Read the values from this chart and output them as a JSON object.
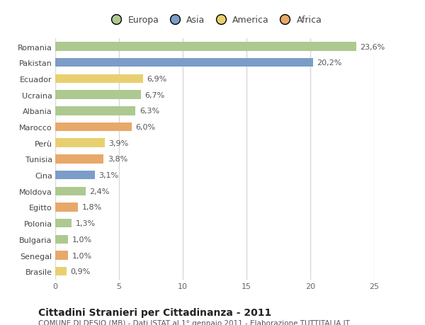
{
  "countries": [
    "Romania",
    "Pakistan",
    "Ecuador",
    "Ucraina",
    "Albania",
    "Marocco",
    "Perù",
    "Tunisia",
    "Cina",
    "Moldova",
    "Egitto",
    "Polonia",
    "Bulgaria",
    "Senegal",
    "Brasile"
  ],
  "values": [
    23.6,
    20.2,
    6.9,
    6.7,
    6.3,
    6.0,
    3.9,
    3.8,
    3.1,
    2.4,
    1.8,
    1.3,
    1.0,
    1.0,
    0.9
  ],
  "labels": [
    "23,6%",
    "20,2%",
    "6,9%",
    "6,7%",
    "6,3%",
    "6,0%",
    "3,9%",
    "3,8%",
    "3,1%",
    "2,4%",
    "1,8%",
    "1,3%",
    "1,0%",
    "1,0%",
    "0,9%"
  ],
  "continents": [
    "Europa",
    "Asia",
    "America",
    "Europa",
    "Europa",
    "Africa",
    "America",
    "Africa",
    "Asia",
    "Europa",
    "Africa",
    "Europa",
    "Europa",
    "Africa",
    "America"
  ],
  "continent_colors": {
    "Europa": "#adc990",
    "Asia": "#7b9dc8",
    "America": "#e8d070",
    "Africa": "#e8a86a"
  },
  "legend_order": [
    "Europa",
    "Asia",
    "America",
    "Africa"
  ],
  "legend_colors": [
    "#adc990",
    "#7b9dc8",
    "#e8d070",
    "#e8a86a"
  ],
  "xlim": [
    0,
    25
  ],
  "xticks": [
    0,
    5,
    10,
    15,
    20,
    25
  ],
  "title": "Cittadini Stranieri per Cittadinanza - 2011",
  "subtitle": "COMUNE DI DESIO (MB) - Dati ISTAT al 1° gennaio 2011 - Elaborazione TUTTITALIA.IT",
  "bg_color": "#ffffff",
  "plot_bg_color": "#ffffff",
  "grid_color": "#d8d8d8",
  "bar_height": 0.55,
  "label_fontsize": 8.0,
  "tick_fontsize": 8.0,
  "title_fontsize": 10,
  "subtitle_fontsize": 7.5
}
